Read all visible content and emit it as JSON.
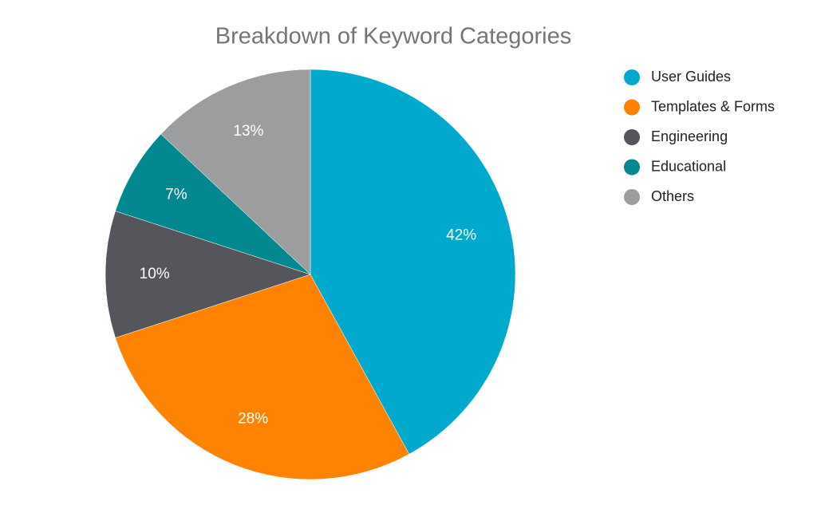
{
  "chart_data": {
    "type": "pie",
    "title": "Breakdown of Keyword Categories",
    "categories": [
      "User Guides",
      "Templates & Forms",
      "Engineering",
      "Educational",
      "Others"
    ],
    "values": [
      42,
      28,
      10,
      7,
      13
    ],
    "value_labels": [
      "42%",
      "28%",
      "10%",
      "7%",
      "13%"
    ],
    "colors": [
      "#01a9cd",
      "#ff8200",
      "#55565b",
      "#03888f",
      "#9c9d9f"
    ],
    "legend": "right"
  }
}
